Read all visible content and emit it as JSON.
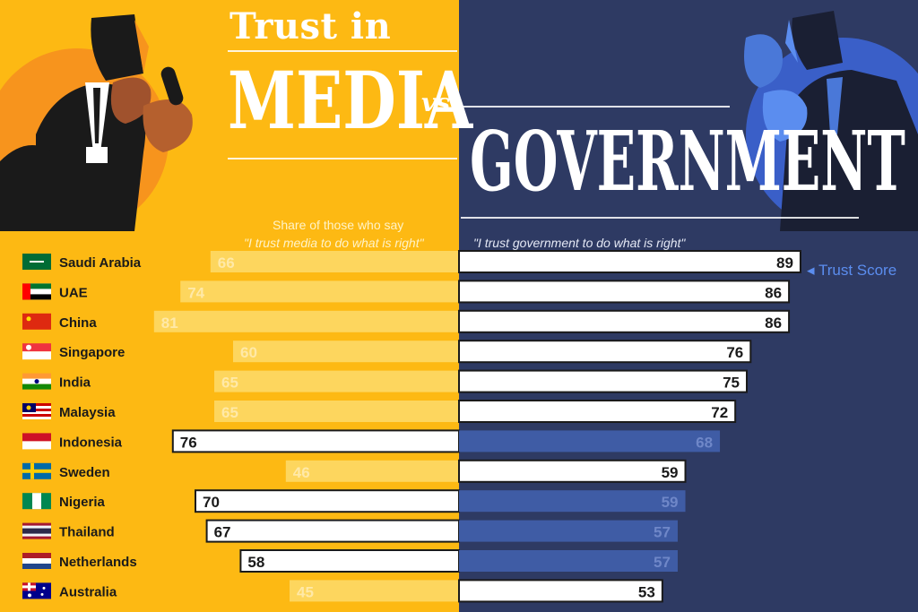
{
  "header": {
    "title_line1": "Trust in",
    "title_media": "MEDIA",
    "title_vs": "vs",
    "title_gov": "GOVERNMENT"
  },
  "subtitles": {
    "left_line1": "Share of those who say",
    "left_line2": "\"I trust media to do what is right\"",
    "right": "\"I trust government to do what is right\""
  },
  "legend": {
    "label": "Trust Score"
  },
  "colors": {
    "media_bg": "#FDB913",
    "gov_bg": "#2E3A63",
    "media_bar_faded": "#FDD65E",
    "gov_bar_faded": "#3F5CA5",
    "highlight_bar": "#FFFFFF",
    "legend_accent": "#5B8DEF"
  },
  "chart_data": {
    "type": "bar",
    "orientation": "diverging-horizontal",
    "categories": [
      "Saudi Arabia",
      "UAE",
      "China",
      "Singapore",
      "India",
      "Malaysia",
      "Indonesia",
      "Sweden",
      "Nigeria",
      "Thailand",
      "Netherlands",
      "Australia"
    ],
    "series": [
      {
        "name": "\"I trust media to do what is right\"",
        "values": [
          66,
          74,
          81,
          60,
          65,
          65,
          76,
          46,
          70,
          67,
          58,
          45
        ],
        "highlight": [
          false,
          false,
          false,
          false,
          false,
          false,
          true,
          false,
          true,
          true,
          true,
          false
        ]
      },
      {
        "name": "\"I trust government to do what is right\"",
        "values": [
          89,
          86,
          86,
          76,
          75,
          72,
          68,
          59,
          59,
          57,
          57,
          53
        ],
        "highlight": [
          true,
          true,
          true,
          true,
          true,
          true,
          false,
          true,
          false,
          false,
          false,
          true
        ]
      }
    ],
    "flags": [
      "saudi-arabia-flag-icon",
      "uae-flag-icon",
      "china-flag-icon",
      "singapore-flag-icon",
      "india-flag-icon",
      "malaysia-flag-icon",
      "indonesia-flag-icon",
      "sweden-flag-icon",
      "nigeria-flag-icon",
      "thailand-flag-icon",
      "netherlands-flag-icon",
      "australia-flag-icon"
    ],
    "xlim": [
      0,
      100
    ]
  }
}
